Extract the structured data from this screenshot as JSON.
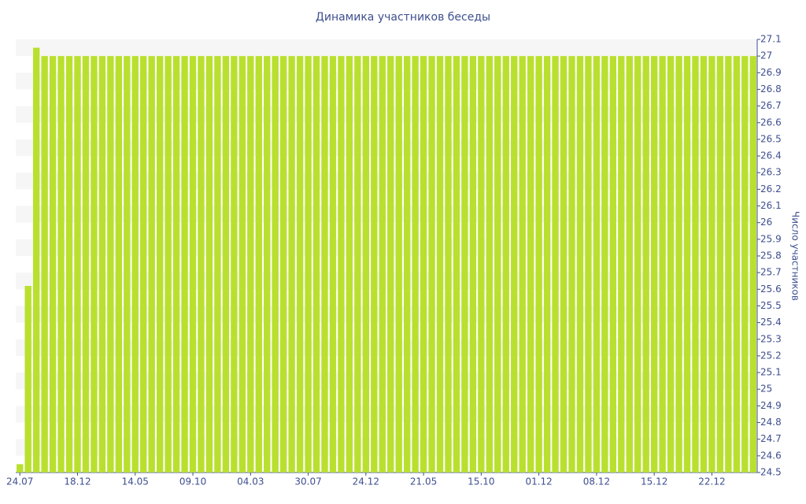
{
  "chart_data": {
    "type": "bar",
    "title": "Динамика участников беседы",
    "y_axis_label": "Число участников",
    "categories": [
      "24.07",
      null,
      null,
      null,
      null,
      null,
      null,
      "18.12",
      null,
      null,
      null,
      null,
      null,
      null,
      "14.05",
      null,
      null,
      null,
      null,
      null,
      null,
      "09.10",
      null,
      null,
      null,
      null,
      null,
      null,
      "04.03",
      null,
      null,
      null,
      null,
      null,
      null,
      "30.07",
      null,
      null,
      null,
      null,
      null,
      null,
      "24.12",
      null,
      null,
      null,
      null,
      null,
      null,
      "21.05",
      null,
      null,
      null,
      null,
      null,
      null,
      "15.10",
      null,
      null,
      null,
      null,
      null,
      null,
      "01.12",
      null,
      null,
      null,
      null,
      null,
      null,
      "08.12",
      null,
      null,
      null,
      null,
      null,
      null,
      "15.12",
      null,
      null,
      null,
      null,
      null,
      null,
      "22.12",
      null,
      null,
      null,
      null,
      null
    ],
    "values": [
      24.55,
      25.62,
      27.05,
      27,
      27,
      27,
      27,
      27,
      27,
      27,
      27,
      27,
      27,
      27,
      27,
      27,
      27,
      27,
      27,
      27,
      27,
      27,
      27,
      27,
      27,
      27,
      27,
      27,
      27,
      27,
      27,
      27,
      27,
      27,
      27,
      27,
      27,
      27,
      27,
      27,
      27,
      27,
      27,
      27,
      27,
      27,
      27,
      27,
      27,
      27,
      27,
      27,
      27,
      27,
      27,
      27,
      27,
      27,
      27,
      27,
      27,
      27,
      27,
      27,
      27,
      27,
      27,
      27,
      27,
      27,
      27,
      27,
      27,
      27,
      27,
      27,
      27,
      27,
      27,
      27,
      27,
      27,
      27,
      27,
      27,
      27,
      27,
      27,
      27,
      27
    ],
    "color": "#b9e02e",
    "ylim": [
      24.5,
      27.1
    ],
    "yticks": [
      24.5,
      24.6,
      24.7,
      24.8,
      24.9,
      25,
      25.1,
      25.2,
      25.3,
      25.4,
      25.5,
      25.6,
      25.7,
      25.8,
      25.9,
      26,
      26.1,
      26.2,
      26.3,
      26.4,
      26.5,
      26.6,
      26.7,
      26.8,
      26.9,
      27,
      27.1
    ],
    "y_axis_side": "right",
    "grid": "bands"
  }
}
